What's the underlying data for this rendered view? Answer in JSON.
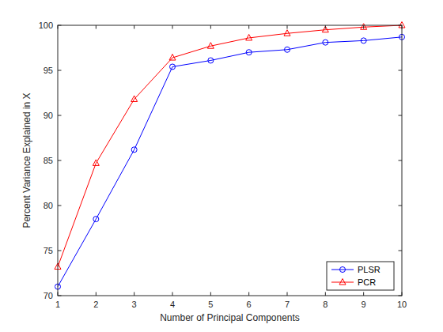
{
  "chart_data": {
    "type": "line",
    "x_label": "Number of Principal Components",
    "y_label": "Percent Variance Explained in X",
    "x": [
      1,
      2,
      3,
      4,
      5,
      6,
      7,
      8,
      9,
      10
    ],
    "series": [
      {
        "name": "PLSR",
        "color": "#0000ff",
        "marker": "circle",
        "line_style": "solid",
        "values": [
          71.0,
          78.5,
          86.2,
          95.4,
          96.1,
          97.0,
          97.3,
          98.1,
          98.3,
          98.7
        ]
      },
      {
        "name": "PCR",
        "color": "#ff0000",
        "marker": "triangle",
        "line_style": "solid",
        "values": [
          73.2,
          84.7,
          91.8,
          96.4,
          97.7,
          98.6,
          99.1,
          99.5,
          99.8,
          100.0
        ]
      }
    ],
    "xlim": [
      1,
      10
    ],
    "xticks": [
      1,
      2,
      3,
      4,
      5,
      6,
      7,
      8,
      9,
      10
    ],
    "ylim": [
      70,
      100
    ],
    "yticks": [
      70,
      75,
      80,
      85,
      90,
      95,
      100
    ],
    "grid": false,
    "legend": "southeast"
  }
}
